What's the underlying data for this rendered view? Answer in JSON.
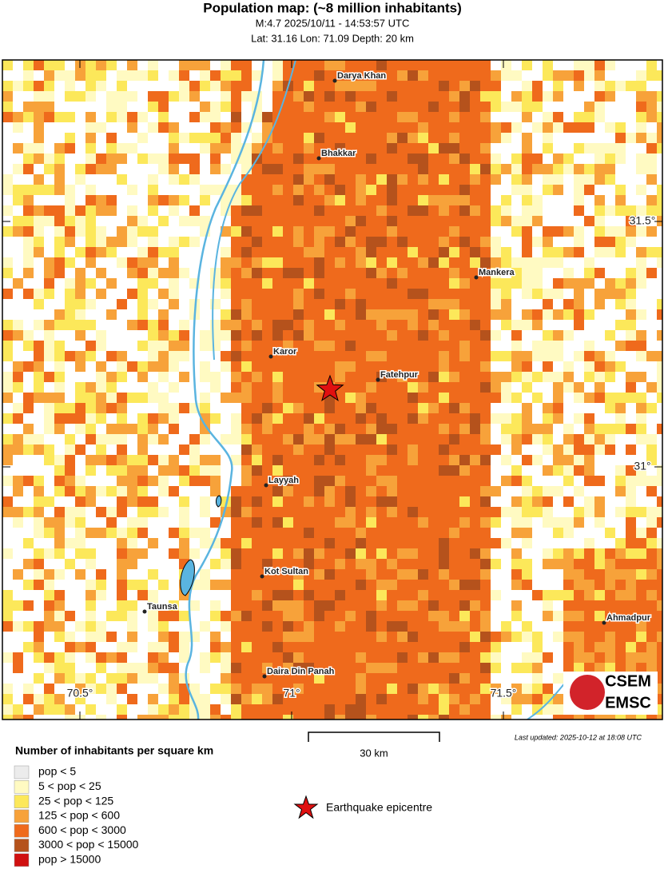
{
  "header": {
    "title": "Population map: (~8 million inhabitants)",
    "line1": "M:4.7 2025/10/11 - 14:53:57 UTC",
    "line2": "Lat: 31.16 Lon: 71.09 Depth: 20 km"
  },
  "map": {
    "lat_ticks": [
      {
        "value": 31.5,
        "label": "31.5°"
      },
      {
        "value": 31,
        "label": "31°"
      }
    ],
    "lon_ticks": [
      {
        "value": 70.5,
        "label": "70.5°"
      },
      {
        "value": 71,
        "label": "71°"
      },
      {
        "value": 71.5,
        "label": "71.5°"
      }
    ],
    "cities": [
      "Darya Khan",
      "Bhakkar",
      "Mankera",
      "Karor",
      "Fatehpur",
      "Layyah",
      "Kot Sultan",
      "Taunsa",
      "Ahmadpur",
      "Daira Din Panah"
    ],
    "scale": "30 km",
    "updated": "Last updated: 2025-10-12 at 18:08 UTC",
    "logo": [
      "CSEM",
      "EMSC"
    ]
  },
  "legend": {
    "title": "Number of inhabitants per square km",
    "items": [
      {
        "label": "pop < 5",
        "color": "#ececec"
      },
      {
        "label": "5 < pop < 25",
        "color": "#fffac2"
      },
      {
        "label": "25 < pop < 125",
        "color": "#fce85a"
      },
      {
        "label": "125 < pop < 600",
        "color": "#f7a23a"
      },
      {
        "label": "600 < pop < 3000",
        "color": "#ef6a1c"
      },
      {
        "label": "3000 < pop < 15000",
        "color": "#b5521c"
      },
      {
        "label": "pop > 15000",
        "color": "#d01010"
      }
    ],
    "epicentre": "Earthquake epicentre"
  }
}
